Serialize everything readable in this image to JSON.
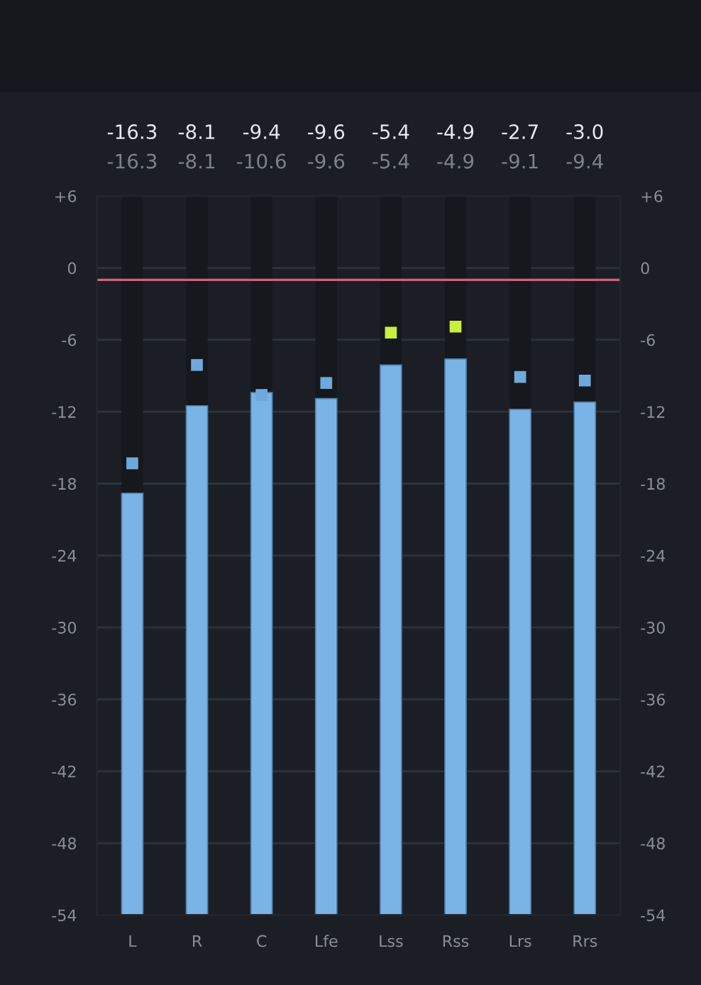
{
  "chart_data": {
    "type": "bar",
    "categories": [
      "L",
      "R",
      "C",
      "Lfe",
      "Lss",
      "Rss",
      "Lrs",
      "Rrs"
    ],
    "series": [
      {
        "color": "#7ab4e6",
        "base": [
          -54,
          -54,
          -54,
          -54,
          -54,
          -54,
          -54,
          -54
        ],
        "values": [
          35.2,
          42.5,
          43.6,
          43.1,
          45.9,
          46.4,
          42.2,
          42.8
        ]
      },
      {
        "type": "scatter",
        "marker": "square",
        "colors": [
          "#6fa9dc",
          "#6fa9dc",
          "#6fa9dc",
          "#6fa9dc",
          "#c8f03a",
          "#c8f03a",
          "#6fa9dc",
          "#6fa9dc"
        ],
        "values": [
          -16.3,
          -8.1,
          -10.6,
          -9.6,
          -5.4,
          -4.9,
          -9.1,
          -9.4
        ]
      }
    ],
    "ylim": [
      -54,
      6
    ],
    "yticks": [
      {
        "value": 6,
        "label": "+6"
      },
      0,
      -6,
      -12,
      -18,
      -24,
      -30,
      -36,
      -42,
      -48,
      -54
    ],
    "y2lim": [
      -54,
      6
    ],
    "y2ticks": [
      {
        "value": 6,
        "label": "+6"
      },
      0,
      -6,
      -12,
      -18,
      -24,
      -30,
      -36,
      -42,
      -48,
      -54
    ],
    "ref_lines": [
      {
        "axis": "y",
        "value": -1,
        "color": "#d0607e"
      }
    ],
    "annotations": [
      "-16.3",
      "-8.1",
      "-9.4",
      "-9.6",
      "-5.4",
      "-4.9",
      "-2.7",
      "-3.0",
      "-16.3",
      "-8.1",
      "-10.6",
      "-9.6",
      "-5.4",
      "-4.9",
      "-9.1",
      "-9.4"
    ],
    "grid": "y",
    "legend": false
  }
}
